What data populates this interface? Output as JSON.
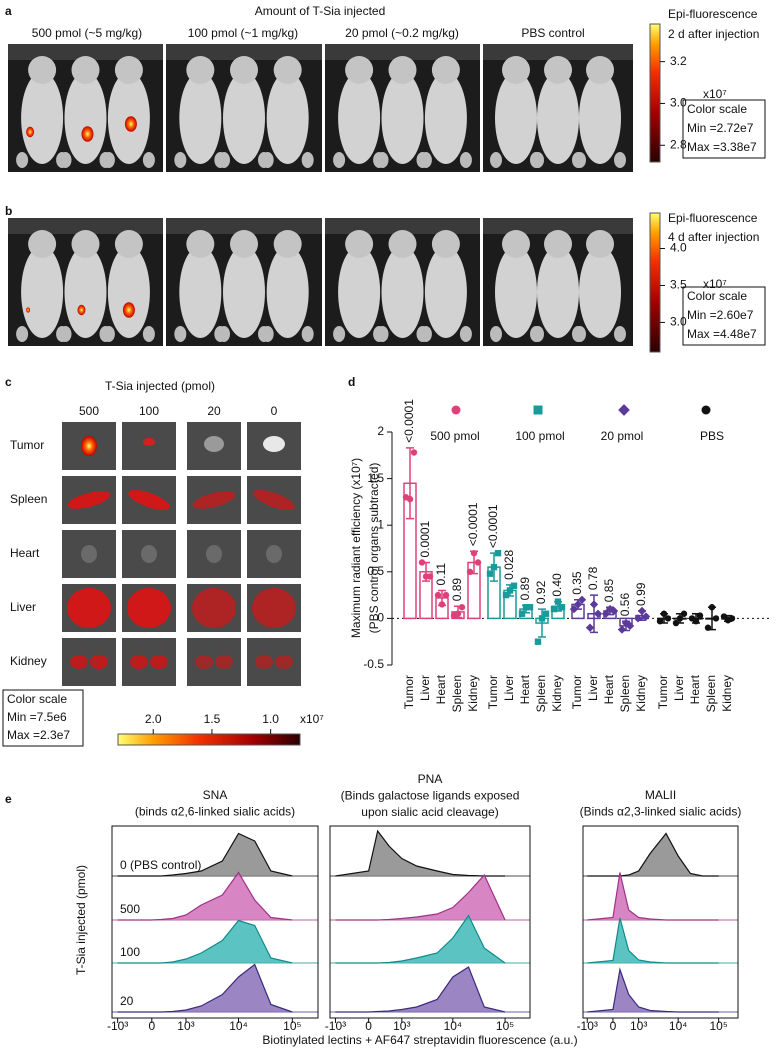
{
  "panel_a": {
    "letter": "a",
    "title": "Amount of T-Sia injected",
    "groups": [
      "500 pmol (~5 mg/kg)",
      "100 pmol (~1 mg/kg)",
      "20 pmol (~0.2 mg/kg)",
      "PBS control"
    ],
    "colorbar": {
      "title": "Epi-fluorescence",
      "subtitle": "2 d after injection",
      "multiplier": "x10⁷",
      "box": [
        "Color scale",
        "Min =2.72e7",
        "Max =3.38e7"
      ],
      "lim": [
        2.72,
        3.38
      ],
      "ticks": [
        3.2,
        {
          "value": 3,
          "label": "3.0"
        },
        2.8
      ]
    }
  },
  "panel_b": {
    "letter": "b",
    "colorbar": {
      "title": "Epi-fluorescence",
      "subtitle": "4 d after injection",
      "multiplier": "x10⁷",
      "box": [
        "Color scale",
        "Min =2.60e7",
        "Max =4.48e7"
      ],
      "lim": [
        2.6,
        4.48
      ],
      "ticks": [
        {
          "value": 4,
          "label": "4.0"
        },
        3.5,
        {
          "value": 3,
          "label": "3.0"
        }
      ]
    }
  },
  "panel_c": {
    "letter": "c",
    "title": "T-Sia injected (pmol)",
    "columns": [
      "500",
      "100",
      "20",
      "0"
    ],
    "rows": [
      "Tumor",
      "Spleen",
      "Heart",
      "Liver",
      "Kidney"
    ],
    "colorbar": {
      "multiplier": "x10⁷",
      "box": [
        "Color scale",
        "Min =7.5e6",
        "Max =2.3e7"
      ],
      "lim": [
        2.3,
        0.75
      ],
      "ticks": [
        {
          "value": 2,
          "label": "2.0"
        },
        1.5,
        {
          "value": 1,
          "label": "1.0"
        }
      ]
    }
  },
  "panel_e": {
    "letter": "e",
    "ylabel": "T-Sia injected (pmol)",
    "xlabel": "Biotinylated lectins + AF647 streptavidin fluorescence (a.u.)",
    "row_labels": [
      "0 (PBS control)",
      "500",
      "100",
      "20"
    ]
  },
  "chart_data": [
    {
      "type": "bar",
      "panel_label": "d",
      "ylabel": [
        "Maximum radiant efficiency (x10⁷)",
        "(PBS control organs subtracted)"
      ],
      "categories": [
        "Tumor",
        "Liver",
        "Heart",
        "Spleen",
        "Kidney"
      ],
      "ylim": [
        -0.5,
        2
      ],
      "yticks": [
        -0.5,
        0,
        0.5,
        1,
        1.5,
        2
      ],
      "series": [
        {
          "name": "500 pmol",
          "color": "#e0407a",
          "marker": "circle",
          "values": [
            1.45,
            0.5,
            0.22,
            0.07,
            0.6
          ],
          "errors": [
            0.38,
            0.1,
            0.08,
            0.06,
            0.12
          ],
          "points": [
            [
              1.3,
              1.28,
              1.78
            ],
            [
              0.6,
              0.45,
              0.45
            ],
            [
              0.25,
              0.15,
              0.25
            ],
            [
              0.03,
              0.05,
              0.12
            ],
            [
              0.5,
              0.7,
              0.6
            ]
          ],
          "p_values": [
            "<0.0001",
            "0.0001",
            "0.11",
            "0.89",
            "<0.0001"
          ]
        },
        {
          "name": "100 pmol",
          "color": "#1a9a9a",
          "marker": "square",
          "values": [
            0.55,
            0.3,
            0.1,
            -0.05,
            0.13
          ],
          "errors": [
            0.15,
            0.06,
            0.04,
            0.15,
            0.05
          ],
          "points": [
            [
              0.48,
              0.55,
              0.7
            ],
            [
              0.25,
              0.3,
              0.35
            ],
            [
              0.05,
              0.12,
              0.12
            ],
            [
              -0.25,
              0,
              0.05
            ],
            [
              0.1,
              0.18,
              0.12
            ]
          ],
          "p_values": [
            "<0.0001",
            "0.028",
            "0.89",
            "0.92",
            "0.40"
          ]
        },
        {
          "name": "20 pmol",
          "color": "#5b3a9a",
          "marker": "diamond",
          "values": [
            0.15,
            0.05,
            0.08,
            -0.08,
            0.03
          ],
          "errors": [
            0.05,
            0.2,
            0.04,
            0.05,
            0.05
          ],
          "points": [
            [
              0.1,
              0.15,
              0.2
            ],
            [
              -0.1,
              0.15,
              0.05
            ],
            [
              0.05,
              0.1,
              0.08
            ],
            [
              -0.12,
              -0.05,
              -0.08
            ],
            [
              0,
              0.08,
              0.02
            ]
          ],
          "p_values": [
            "0.35",
            "0.78",
            "0.85",
            "0.56",
            "0.99"
          ]
        },
        {
          "name": "PBS",
          "color": "#111111",
          "marker": "circle",
          "values": [
            0,
            0,
            0,
            0,
            0
          ],
          "errors": [
            0.05,
            0.05,
            0.05,
            0.12,
            0.03
          ],
          "points": [
            [
              -0.03,
              0.05,
              0
            ],
            [
              -0.05,
              0,
              0.05
            ],
            [
              0,
              -0.03,
              0.03
            ],
            [
              -0.1,
              0.12,
              0
            ],
            [
              0.02,
              -0.02,
              0
            ]
          ]
        }
      ]
    },
    {
      "type": "ridgeline",
      "title": [
        "SNA",
        "(binds α2,6-linked sialic acids)"
      ],
      "x": [
        -1000,
        0,
        200,
        500,
        1000,
        2000,
        5000,
        10000,
        20000,
        40000,
        100000
      ],
      "xlim": [
        -1300,
        300000
      ],
      "xticks": [
        {
          "value": -1000,
          "label": "-10³"
        },
        0,
        {
          "value": 1000,
          "label": "10³"
        },
        {
          "value": 10000,
          "label": "10⁴"
        },
        {
          "value": 100000,
          "label": "10⁵"
        }
      ],
      "ylim": [
        0,
        100
      ],
      "series": [
        {
          "color": "#888888",
          "line": "#111111",
          "values": [
            0,
            0,
            0,
            2,
            5,
            10,
            30,
            85,
            70,
            10,
            0
          ]
        },
        {
          "color": "#d070b8",
          "line": "#a0308a",
          "values": [
            0,
            0,
            1,
            3,
            10,
            30,
            50,
            95,
            40,
            5,
            0
          ]
        },
        {
          "color": "#40b8b8",
          "line": "#108a8a",
          "values": [
            0,
            0,
            0,
            2,
            8,
            20,
            45,
            85,
            75,
            10,
            0
          ]
        },
        {
          "color": "#8a70b8",
          "line": "#3a2a80",
          "values": [
            0,
            0,
            0,
            1,
            4,
            12,
            35,
            70,
            95,
            15,
            0
          ]
        }
      ]
    },
    {
      "type": "ridgeline",
      "title": [
        "PNA",
        "(Binds galactose ligands exposed",
        "upon sialic acid cleavage)"
      ],
      "x": [
        -1000,
        0,
        200,
        500,
        1000,
        2000,
        5000,
        10000,
        20000,
        40000,
        100000
      ],
      "xlim": [
        -1300,
        300000
      ],
      "xticks": [
        {
          "value": -1000,
          "label": "-10³"
        },
        0,
        {
          "value": 1000,
          "label": "10³"
        },
        {
          "value": 10000,
          "label": "10⁴"
        },
        {
          "value": 100000,
          "label": "10⁵"
        }
      ],
      "ylim": [
        0,
        100
      ],
      "series": [
        {
          "color": "#888888",
          "line": "#111111",
          "values": [
            0,
            10,
            90,
            60,
            35,
            20,
            10,
            3,
            1,
            0,
            0
          ]
        },
        {
          "color": "#d070b8",
          "line": "#a0308a",
          "values": [
            0,
            0,
            0,
            1,
            3,
            6,
            12,
            25,
            55,
            90,
            0
          ]
        },
        {
          "color": "#40b8b8",
          "line": "#108a8a",
          "values": [
            0,
            0,
            0,
            1,
            4,
            10,
            20,
            50,
            95,
            30,
            0
          ]
        },
        {
          "color": "#8a70b8",
          "line": "#3a2a80",
          "values": [
            0,
            0,
            1,
            2,
            5,
            10,
            25,
            70,
            90,
            10,
            0
          ]
        }
      ]
    },
    {
      "type": "ridgeline",
      "title": [
        "MALII",
        "(Binds α2,3-linked sialic acids)"
      ],
      "x": [
        -1000,
        0,
        200,
        500,
        1000,
        2000,
        5000,
        10000,
        20000,
        40000,
        100000
      ],
      "xlim": [
        -1300,
        300000
      ],
      "xticks": [
        {
          "value": -1000,
          "label": "-10³"
        },
        0,
        {
          "value": 1000,
          "label": "10³"
        },
        {
          "value": 10000,
          "label": "10⁴"
        },
        {
          "value": 100000,
          "label": "10⁵"
        }
      ],
      "ylim": [
        0,
        100
      ],
      "series": [
        {
          "color": "#888888",
          "line": "#111111",
          "values": [
            0,
            0,
            0,
            2,
            10,
            45,
            85,
            40,
            5,
            0,
            0
          ]
        },
        {
          "color": "#d070b8",
          "line": "#a0308a",
          "values": [
            0,
            5,
            95,
            20,
            5,
            2,
            0,
            0,
            0,
            0,
            0
          ]
        },
        {
          "color": "#40b8b8",
          "line": "#108a8a",
          "values": [
            0,
            5,
            90,
            25,
            6,
            2,
            0,
            0,
            0,
            0,
            0
          ]
        },
        {
          "color": "#8a70b8",
          "line": "#3a2a80",
          "values": [
            0,
            5,
            85,
            35,
            10,
            3,
            1,
            0,
            0,
            0,
            0
          ]
        }
      ]
    }
  ]
}
